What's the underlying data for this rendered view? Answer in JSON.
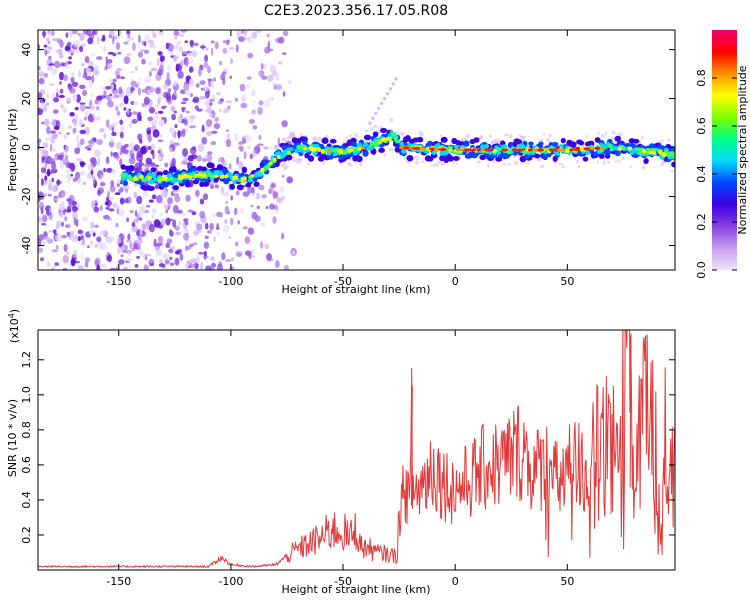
{
  "figure": {
    "title": "C2E3.2023.356.17.05.R08"
  },
  "chart_data": [
    {
      "type": "heatmap",
      "xlabel": "Height of straight line (km)",
      "ylabel": "Frequency (Hz)",
      "xlim": [
        -186,
        98
      ],
      "ylim": [
        -50,
        48
      ],
      "xticks": [
        -150,
        -100,
        -50,
        0,
        50
      ],
      "yticks": [
        -40,
        -20,
        0,
        20,
        40
      ],
      "ridge": {
        "x": [
          -148,
          -130,
          -110,
          -95,
          -88,
          -80,
          -70,
          -60,
          -50,
          -40,
          -32,
          -27,
          -25,
          0,
          25,
          50,
          70,
          98
        ],
        "freq": [
          -12,
          -13,
          -11,
          -13,
          -11,
          -4,
          0,
          -1,
          -2,
          0,
          3,
          5,
          0,
          -1,
          -1,
          -1,
          0,
          -3
        ]
      },
      "noise_region_x": [
        -186,
        -80
      ],
      "colorbar": {
        "label": "Normalized spectral amplitude",
        "range": [
          0,
          1
        ],
        "ticks": [
          0.0,
          0.2,
          0.4,
          0.6,
          0.8
        ],
        "colormap": [
          "#ede4fb",
          "#c49ef0",
          "#8a3ee0",
          "#3a00e0",
          "#0048ff",
          "#00d8ff",
          "#00ff80",
          "#7cff00",
          "#ffff00",
          "#ff9000",
          "#ff0000",
          "#f00070"
        ]
      }
    },
    {
      "type": "line",
      "xlabel": "Height of straight line (km)",
      "ylabel": "SNR (10 * v/v)",
      "exponent_label": "(x10",
      "exponent_power": "4",
      "exponent_close": ")",
      "xlim": [
        -186,
        98
      ],
      "ylim": [
        0,
        13700
      ],
      "xticks": [
        -150,
        -100,
        -50,
        0,
        50
      ],
      "yticks": [
        2000,
        4000,
        6000,
        8000,
        10000,
        12000
      ],
      "ytick_labels": [
        "0.2",
        "0.4",
        "0.6",
        "0.8",
        "1.0",
        "1.2"
      ],
      "line_color": "#e03a3a",
      "series": [
        {
          "x": [
            -186,
            -160,
            -130,
            -110,
            -104,
            -100,
            -90,
            -80,
            -74,
            -70,
            -65,
            -60,
            -55,
            -50,
            -47,
            -44,
            -42,
            -40,
            -35,
            -30,
            -26,
            -25,
            -22,
            -20,
            -19.5,
            -19,
            -17,
            -14,
            -10,
            -5,
            0,
            5,
            10,
            15,
            20,
            25,
            30,
            35,
            40,
            45,
            50,
            55,
            60,
            65,
            70,
            75,
            77,
            79,
            80,
            85,
            90,
            95,
            98
          ],
          "values": [
            200,
            200,
            200,
            200,
            700,
            300,
            200,
            300,
            900,
            1200,
            1500,
            1800,
            2300,
            2200,
            1800,
            2400,
            1300,
            1300,
            1000,
            900,
            800,
            3000,
            5000,
            3500,
            10500,
            4500,
            4500,
            5000,
            6000,
            5000,
            4600,
            5000,
            5500,
            6000,
            6000,
            6500,
            7000,
            5500,
            6200,
            5000,
            5600,
            5800,
            6000,
            7000,
            6000,
            8500,
            13500,
            7000,
            5500,
            9000,
            5500,
            7000,
            6000
          ]
        }
      ]
    }
  ]
}
